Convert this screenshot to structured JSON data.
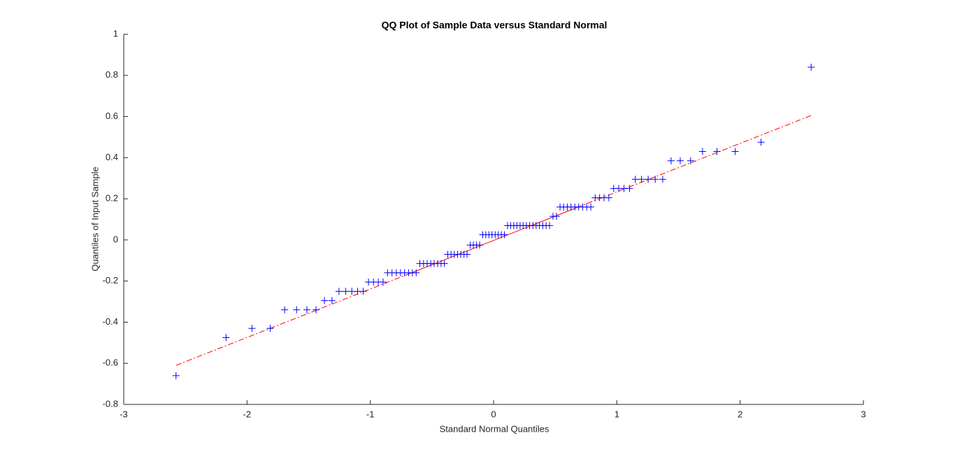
{
  "chart_data": {
    "type": "scatter",
    "title": "QQ Plot of Sample Data versus Standard Normal",
    "x_label": "Standard Normal Quantiles",
    "y_label": "Quantiles of Input Sample",
    "xlim": [
      -3,
      3
    ],
    "ylim": [
      -0.8,
      1
    ],
    "xticks": [
      -3,
      -2,
      -1,
      0,
      1,
      2,
      3
    ],
    "yticks": [
      -0.8,
      -0.6,
      -0.4,
      -0.2,
      0,
      0.2,
      0.4,
      0.6,
      0.8,
      1
    ],
    "grid": false,
    "color": "#0000ff",
    "x": [
      -2.576,
      -2.17,
      -1.96,
      -1.812,
      -1.695,
      -1.598,
      -1.514,
      -1.44,
      -1.372,
      -1.311,
      -1.254,
      -1.2,
      -1.15,
      -1.103,
      -1.058,
      -1.015,
      -0.974,
      -0.935,
      -0.896,
      -0.86,
      -0.824,
      -0.789,
      -0.755,
      -0.722,
      -0.69,
      -0.659,
      -0.628,
      -0.598,
      -0.568,
      -0.539,
      -0.51,
      -0.482,
      -0.454,
      -0.426,
      -0.399,
      -0.372,
      -0.345,
      -0.319,
      -0.292,
      -0.266,
      -0.24,
      -0.215,
      -0.189,
      -0.164,
      -0.138,
      -0.113,
      -0.088,
      -0.063,
      -0.038,
      -0.013,
      0.013,
      0.038,
      0.063,
      0.088,
      0.113,
      0.138,
      0.164,
      0.189,
      0.215,
      0.24,
      0.266,
      0.292,
      0.319,
      0.345,
      0.372,
      0.399,
      0.426,
      0.454,
      0.482,
      0.51,
      0.539,
      0.568,
      0.598,
      0.628,
      0.659,
      0.69,
      0.722,
      0.755,
      0.789,
      0.824,
      0.86,
      0.896,
      0.935,
      0.974,
      1.015,
      1.058,
      1.103,
      1.15,
      1.2,
      1.254,
      1.311,
      1.372,
      1.44,
      1.514,
      1.598,
      1.695,
      1.812,
      1.96,
      2.17,
      2.576
    ],
    "values": [
      -0.66,
      -0.475,
      -0.43,
      -0.43,
      -0.34,
      -0.34,
      -0.34,
      -0.34,
      -0.295,
      -0.295,
      -0.25,
      -0.25,
      -0.25,
      -0.25,
      -0.25,
      -0.205,
      -0.205,
      -0.205,
      -0.205,
      -0.16,
      -0.16,
      -0.16,
      -0.16,
      -0.16,
      -0.16,
      -0.16,
      -0.16,
      -0.115,
      -0.115,
      -0.115,
      -0.115,
      -0.115,
      -0.115,
      -0.115,
      -0.115,
      -0.07,
      -0.07,
      -0.07,
      -0.07,
      -0.07,
      -0.07,
      -0.07,
      -0.025,
      -0.025,
      -0.025,
      -0.025,
      0.025,
      0.025,
      0.025,
      0.025,
      0.025,
      0.025,
      0.025,
      0.025,
      0.07,
      0.07,
      0.07,
      0.07,
      0.07,
      0.07,
      0.07,
      0.07,
      0.07,
      0.07,
      0.07,
      0.07,
      0.07,
      0.07,
      0.115,
      0.115,
      0.16,
      0.16,
      0.16,
      0.16,
      0.16,
      0.16,
      0.16,
      0.16,
      0.16,
      0.205,
      0.205,
      0.205,
      0.205,
      0.25,
      0.25,
      0.25,
      0.25,
      0.295,
      0.295,
      0.295,
      0.295,
      0.295,
      0.385,
      0.385,
      0.385,
      0.43,
      0.43,
      0.43,
      0.475,
      0.84
    ],
    "reference_line": {
      "x": [
        -2.576,
        -0.674,
        0.674,
        2.576
      ],
      "values": [
        -0.61,
        -0.162,
        0.157,
        0.605
      ],
      "color": "#ff0000"
    }
  }
}
